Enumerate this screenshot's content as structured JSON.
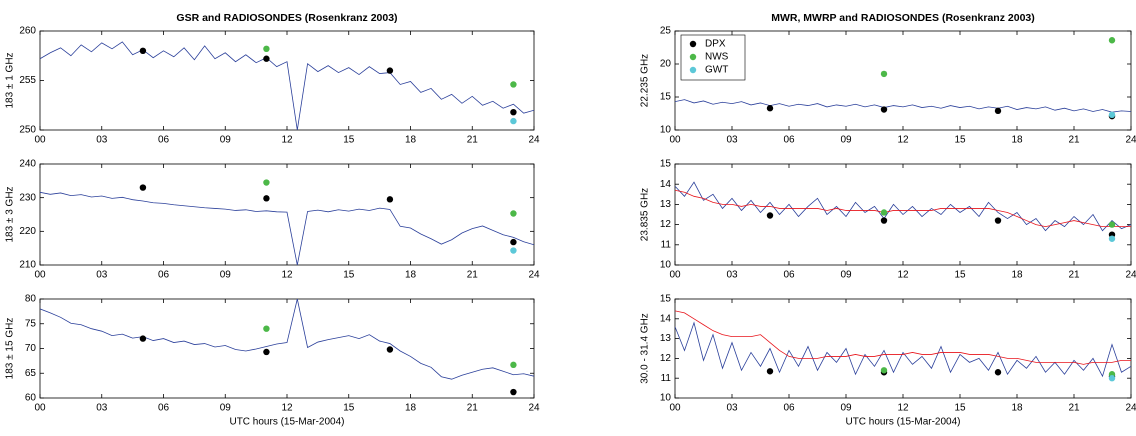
{
  "chart_data": [
    {
      "type": "line",
      "title": "GSR and RADIOSONDES (Rosenkranz 2003)",
      "ylabel": "183 ± 1  GHz",
      "xlim": [
        0,
        24
      ],
      "xticks": [
        {
          "value": 0,
          "label": "00"
        },
        {
          "value": 3,
          "label": "03"
        },
        {
          "value": 6,
          "label": "06"
        },
        {
          "value": 9,
          "label": "09"
        },
        12,
        15,
        18,
        21,
        24
      ],
      "ylim": [
        250,
        260
      ],
      "yticks": [
        250,
        255,
        260
      ],
      "x": [
        0,
        0.5,
        1,
        1.5,
        2,
        2.5,
        3,
        3.5,
        4,
        4.5,
        5,
        5.5,
        6,
        6.5,
        7,
        7.5,
        8,
        8.5,
        9,
        9.5,
        10,
        10.5,
        11,
        11.5,
        12,
        12.5,
        13,
        13.5,
        14,
        14.5,
        15,
        15.5,
        16,
        16.5,
        17,
        17.5,
        18,
        18.5,
        19,
        19.5,
        20,
        20.5,
        21,
        21.5,
        22,
        22.5,
        23,
        23.5,
        24
      ],
      "series": [
        {
          "type": "line",
          "color": "#2a3f9a",
          "values": [
            257.2,
            257.8,
            258.3,
            257.5,
            258.6,
            257.9,
            258.8,
            258.2,
            258.9,
            257.6,
            258.1,
            257.3,
            258.0,
            257.4,
            258.3,
            257.1,
            258.5,
            257.2,
            257.8,
            256.9,
            257.6,
            256.8,
            257.3,
            256.4,
            256.9,
            250,
            256.7,
            255.9,
            256.5,
            255.8,
            256.3,
            255.6,
            256.4,
            255.7,
            255.8,
            254.6,
            254.9,
            253.8,
            254.2,
            253.1,
            253.6,
            252.7,
            253.4,
            252.5,
            252.9,
            252.2,
            252.6,
            251.7,
            252.0
          ]
        },
        {
          "type": "scatter",
          "color": "#000000",
          "x": [
            5,
            11,
            17,
            23
          ],
          "values": [
            258,
            257.2,
            256,
            251.8
          ]
        },
        {
          "type": "scatter",
          "color": "#4cb848",
          "x": [
            11,
            23
          ],
          "values": [
            258.2,
            254.6
          ]
        },
        {
          "type": "scatter",
          "color": "#5cc8d8",
          "x": [
            23
          ],
          "values": [
            250.9
          ]
        }
      ]
    },
    {
      "type": "line",
      "ylabel": "183 ± 3  GHz",
      "xlim": [
        0,
        24
      ],
      "xticks": [
        {
          "value": 0,
          "label": "00"
        },
        {
          "value": 3,
          "label": "03"
        },
        {
          "value": 6,
          "label": "06"
        },
        {
          "value": 9,
          "label": "09"
        },
        12,
        15,
        18,
        21,
        24
      ],
      "ylim": [
        210,
        240
      ],
      "yticks": [
        210,
        220,
        230,
        240
      ],
      "x": [
        0,
        0.5,
        1,
        1.5,
        2,
        2.5,
        3,
        3.5,
        4,
        4.5,
        5,
        5.5,
        6,
        6.5,
        7,
        7.5,
        8,
        8.5,
        9,
        9.5,
        10,
        10.5,
        11,
        11.5,
        12,
        12.5,
        13,
        13.5,
        14,
        14.5,
        15,
        15.5,
        16,
        16.5,
        17,
        17.5,
        18,
        18.5,
        19,
        19.5,
        20,
        20.5,
        21,
        21.5,
        22,
        22.5,
        23,
        23.5,
        24
      ],
      "series": [
        {
          "type": "line",
          "color": "#2a3f9a",
          "values": [
            231.6,
            231.0,
            231.4,
            230.6,
            230.9,
            230.2,
            230.5,
            229.8,
            230.1,
            229.4,
            229.0,
            228.5,
            228.3,
            227.9,
            227.6,
            227.3,
            227.0,
            226.8,
            226.6,
            226.2,
            226.4,
            225.9,
            226.1,
            225.8,
            225.7,
            210,
            225.9,
            226.3,
            225.8,
            226.4,
            226.0,
            226.6,
            226.2,
            226.9,
            226.5,
            221.5,
            221.0,
            219.2,
            217.8,
            216.2,
            217.5,
            219.5,
            220.8,
            221.6,
            220.3,
            219.0,
            218.2,
            216.9,
            216.0
          ]
        },
        {
          "type": "scatter",
          "color": "#000000",
          "x": [
            5,
            11,
            17,
            23
          ],
          "values": [
            233,
            229.8,
            229.5,
            216.8
          ]
        },
        {
          "type": "scatter",
          "color": "#4cb848",
          "x": [
            11,
            23
          ],
          "values": [
            234.5,
            225.3
          ]
        },
        {
          "type": "scatter",
          "color": "#5cc8d8",
          "x": [
            23
          ],
          "values": [
            214.3
          ]
        }
      ]
    },
    {
      "type": "line",
      "ylabel": "183 ± 15 GHz",
      "xlabel": "UTC hours (15-Mar-2004)",
      "xlim": [
        0,
        24
      ],
      "xticks": [
        {
          "value": 0,
          "label": "00"
        },
        {
          "value": 3,
          "label": "03"
        },
        {
          "value": 6,
          "label": "06"
        },
        {
          "value": 9,
          "label": "09"
        },
        12,
        15,
        18,
        21,
        24
      ],
      "ylim": [
        60,
        80
      ],
      "yticks": [
        60,
        65,
        70,
        75,
        80
      ],
      "x": [
        0,
        0.5,
        1,
        1.5,
        2,
        2.5,
        3,
        3.5,
        4,
        4.5,
        5,
        5.5,
        6,
        6.5,
        7,
        7.5,
        8,
        8.5,
        9,
        9.5,
        10,
        10.5,
        11,
        11.5,
        12,
        12.5,
        13,
        13.5,
        14,
        14.5,
        15,
        15.5,
        16,
        16.5,
        17,
        17.5,
        18,
        18.5,
        19,
        19.5,
        20,
        20.5,
        21,
        21.5,
        22,
        22.5,
        23,
        23.5,
        24
      ],
      "series": [
        {
          "type": "line",
          "color": "#2a3f9a",
          "values": [
            78.0,
            77.2,
            76.3,
            75.1,
            74.8,
            74.0,
            73.5,
            72.6,
            72.9,
            72.1,
            72.4,
            71.6,
            72.0,
            71.2,
            71.5,
            70.8,
            71.0,
            70.3,
            70.6,
            69.8,
            69.5,
            69.9,
            70.4,
            70.9,
            71.2,
            80,
            70.2,
            71.3,
            71.8,
            72.2,
            72.6,
            72.0,
            72.8,
            71.5,
            71.0,
            69.5,
            68.4,
            67.0,
            66.2,
            64.3,
            63.8,
            64.6,
            65.2,
            65.8,
            66.1,
            65.4,
            64.7,
            64.9,
            64.4
          ]
        },
        {
          "type": "scatter",
          "color": "#000000",
          "x": [
            5,
            11,
            17,
            23
          ],
          "values": [
            72,
            69.3,
            69.8,
            61.2
          ]
        },
        {
          "type": "scatter",
          "color": "#4cb848",
          "x": [
            11,
            23
          ],
          "values": [
            74,
            66.7
          ]
        }
      ]
    },
    {
      "type": "line",
      "title": "MWR, MWRP and RADIOSONDES (Rosenkranz 2003)",
      "ylabel": "22.235 GHz",
      "legend": "upper left",
      "xlim": [
        0,
        24
      ],
      "xticks": [
        {
          "value": 0,
          "label": "00"
        },
        {
          "value": 3,
          "label": "03"
        },
        {
          "value": 6,
          "label": "06"
        },
        {
          "value": 9,
          "label": "09"
        },
        12,
        15,
        18,
        21,
        24
      ],
      "ylim": [
        10,
        25
      ],
      "yticks": [
        10,
        15,
        20,
        25
      ],
      "x": [
        0,
        0.5,
        1,
        1.5,
        2,
        2.5,
        3,
        3.5,
        4,
        4.5,
        5,
        5.5,
        6,
        6.5,
        7,
        7.5,
        8,
        8.5,
        9,
        9.5,
        10,
        10.5,
        11,
        11.5,
        12,
        12.5,
        13,
        13.5,
        14,
        14.5,
        15,
        15.5,
        16,
        16.5,
        17,
        17.5,
        18,
        18.5,
        19,
        19.5,
        20,
        20.5,
        21,
        21.5,
        22,
        22.5,
        23,
        23.5,
        24
      ],
      "series": [
        {
          "type": "line",
          "color": "#2a3f9a",
          "values": [
            14.3,
            14.6,
            14.1,
            14.4,
            13.9,
            14.2,
            14.0,
            14.3,
            13.8,
            14.1,
            13.7,
            14.0,
            13.6,
            13.9,
            13.7,
            14.0,
            13.5,
            13.8,
            13.6,
            13.9,
            13.5,
            13.8,
            13.4,
            13.7,
            13.5,
            13.8,
            13.4,
            13.6,
            13.3,
            13.7,
            13.4,
            13.6,
            13.2,
            13.5,
            13.3,
            13.6,
            13.1,
            13.4,
            13.2,
            13.5,
            13.0,
            13.3,
            12.9,
            13.2,
            12.8,
            13.1,
            12.7,
            12.9,
            12.8
          ]
        },
        {
          "type": "scatter",
          "name": "DPX",
          "color": "#000000",
          "x": [
            5,
            11,
            17,
            23
          ],
          "values": [
            13.3,
            13.1,
            12.9,
            12.1
          ]
        },
        {
          "type": "scatter",
          "name": "NWS",
          "color": "#4cb848",
          "x": [
            11,
            23
          ],
          "values": [
            18.5,
            23.6
          ]
        },
        {
          "type": "scatter",
          "name": "GWT",
          "color": "#5cc8d8",
          "x": [
            23
          ],
          "values": [
            12.3
          ]
        }
      ]
    },
    {
      "type": "line",
      "ylabel": "23.835 GHz",
      "xlim": [
        0,
        24
      ],
      "xticks": [
        {
          "value": 0,
          "label": "00"
        },
        {
          "value": 3,
          "label": "03"
        },
        {
          "value": 6,
          "label": "06"
        },
        {
          "value": 9,
          "label": "09"
        },
        12,
        15,
        18,
        21,
        24
      ],
      "ylim": [
        10,
        15
      ],
      "yticks": [
        10,
        11,
        12,
        13,
        14,
        15
      ],
      "x": [
        0,
        0.5,
        1,
        1.5,
        2,
        2.5,
        3,
        3.5,
        4,
        4.5,
        5,
        5.5,
        6,
        6.5,
        7,
        7.5,
        8,
        8.5,
        9,
        9.5,
        10,
        10.5,
        11,
        11.5,
        12,
        12.5,
        13,
        13.5,
        14,
        14.5,
        15,
        15.5,
        16,
        16.5,
        17,
        17.5,
        18,
        18.5,
        19,
        19.5,
        20,
        20.5,
        21,
        21.5,
        22,
        22.5,
        23,
        23.5,
        24
      ],
      "series": [
        {
          "type": "line",
          "color": "#2a3f9a",
          "values": [
            13.9,
            13.4,
            14.1,
            13.2,
            13.5,
            12.8,
            13.3,
            12.7,
            13.2,
            12.6,
            13.1,
            12.5,
            13.0,
            12.4,
            12.9,
            13.3,
            12.5,
            12.9,
            12.4,
            13.1,
            12.6,
            12.9,
            12.3,
            13.0,
            12.5,
            12.9,
            12.4,
            12.8,
            12.5,
            13.0,
            12.6,
            12.9,
            12.4,
            13.1,
            12.6,
            12.3,
            12.6,
            12.0,
            12.3,
            11.7,
            12.2,
            11.9,
            12.4,
            12.0,
            12.5,
            11.7,
            12.2,
            11.8,
            12.0
          ]
        },
        {
          "type": "line",
          "color": "#e8141b",
          "values": [
            13.7,
            13.6,
            13.4,
            13.3,
            13.1,
            13.0,
            13.0,
            12.9,
            13.0,
            12.9,
            12.9,
            12.8,
            12.8,
            12.8,
            12.8,
            12.8,
            12.7,
            12.8,
            12.7,
            12.7,
            12.7,
            12.7,
            12.6,
            12.7,
            12.7,
            12.7,
            12.7,
            12.7,
            12.8,
            12.8,
            12.8,
            12.8,
            12.8,
            12.8,
            12.7,
            12.6,
            12.4,
            12.2,
            12.0,
            11.9,
            12.0,
            12.1,
            12.2,
            12.1,
            12.0,
            11.9,
            11.9,
            11.9,
            11.9
          ]
        },
        {
          "type": "scatter",
          "color": "#000000",
          "x": [
            5,
            11,
            17,
            23
          ],
          "values": [
            12.45,
            12.2,
            12.2,
            11.5
          ]
        },
        {
          "type": "scatter",
          "color": "#4cb848",
          "x": [
            11,
            23
          ],
          "values": [
            12.6,
            12
          ]
        },
        {
          "type": "scatter",
          "color": "#5cc8d8",
          "x": [
            23
          ],
          "values": [
            11.3
          ]
        }
      ]
    },
    {
      "type": "line",
      "ylabel": "30.0 - 31.4 GHz",
      "xlabel": "UTC hours (15-Mar-2004)",
      "xlim": [
        0,
        24
      ],
      "xticks": [
        {
          "value": 0,
          "label": "00"
        },
        {
          "value": 3,
          "label": "03"
        },
        {
          "value": 6,
          "label": "06"
        },
        {
          "value": 9,
          "label": "09"
        },
        12,
        15,
        18,
        21,
        24
      ],
      "ylim": [
        10,
        15
      ],
      "yticks": [
        10,
        11,
        12,
        13,
        14,
        15
      ],
      "x": [
        0,
        0.5,
        1,
        1.5,
        2,
        2.5,
        3,
        3.5,
        4,
        4.5,
        5,
        5.5,
        6,
        6.5,
        7,
        7.5,
        8,
        8.5,
        9,
        9.5,
        10,
        10.5,
        11,
        11.5,
        12,
        12.5,
        13,
        13.5,
        14,
        14.5,
        15,
        15.5,
        16,
        16.5,
        17,
        17.5,
        18,
        18.5,
        19,
        19.5,
        20,
        20.5,
        21,
        21.5,
        22,
        22.5,
        23,
        23.5,
        24
      ],
      "series": [
        {
          "type": "line",
          "color": "#2a3f9a",
          "values": [
            13.6,
            12.4,
            13.8,
            11.9,
            13.2,
            11.5,
            12.8,
            11.4,
            12.3,
            11.6,
            12.5,
            11.3,
            12.4,
            11.6,
            12.6,
            11.4,
            12.3,
            11.8,
            12.5,
            11.2,
            12.2,
            11.6,
            12.4,
            11.3,
            12.3,
            11.7,
            12.1,
            11.5,
            12.6,
            11.3,
            12.2,
            11.8,
            12.0,
            11.4,
            12.3,
            11.2,
            11.9,
            11.5,
            12.1,
            11.3,
            11.8,
            11.2,
            11.9,
            11.4,
            12.0,
            11.1,
            12.7,
            11.3,
            11.6
          ]
        },
        {
          "type": "line",
          "color": "#e8141b",
          "values": [
            14.4,
            14.3,
            14.0,
            13.7,
            13.4,
            13.2,
            13.1,
            13.1,
            13.1,
            13.2,
            12.8,
            12.4,
            12.1,
            12.0,
            12.0,
            12.0,
            12.1,
            12.1,
            12.1,
            12.2,
            12.1,
            12.1,
            12.2,
            12.2,
            12.2,
            12.3,
            12.2,
            12.2,
            12.3,
            12.3,
            12.3,
            12.2,
            12.2,
            12.2,
            12.1,
            12.0,
            12.0,
            11.9,
            11.8,
            11.8,
            11.8,
            11.8,
            11.8,
            11.7,
            11.8,
            11.8,
            11.8,
            11.9,
            11.9
          ]
        },
        {
          "type": "scatter",
          "color": "#000000",
          "x": [
            5,
            11,
            17,
            23
          ],
          "values": [
            11.35,
            11.3,
            11.3,
            11.1
          ]
        },
        {
          "type": "scatter",
          "color": "#4cb848",
          "x": [
            11,
            23
          ],
          "values": [
            11.4,
            11.2
          ]
        },
        {
          "type": "scatter",
          "color": "#5cc8d8",
          "x": [
            23
          ],
          "values": [
            11.0
          ]
        }
      ]
    }
  ]
}
